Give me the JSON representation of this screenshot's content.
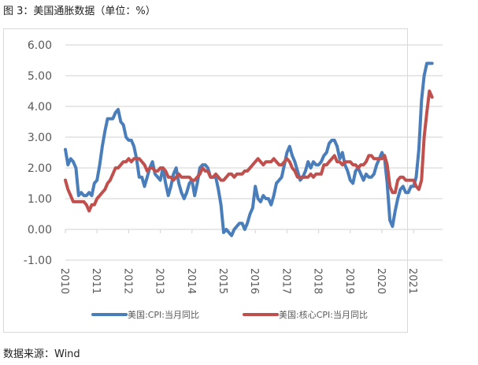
{
  "title": "图 3：美国通胀数据（单位：%）",
  "source": "数据来源：Wind",
  "chart_data": {
    "type": "line",
    "title": "图 3：美国通胀数据（单位：%）",
    "xlabel": "",
    "ylabel": "",
    "ylim": [
      -1.0,
      6.0
    ],
    "yticks": [
      "6.00",
      "5.00",
      "4.00",
      "3.00",
      "2.00",
      "1.00",
      "0.00",
      "-1.00"
    ],
    "xticks": [
      "2010",
      "2011",
      "2012",
      "2013",
      "2014",
      "2015",
      "2016",
      "2017",
      "2018",
      "2019",
      "2020",
      "2021"
    ],
    "grid": true,
    "legend_position": "bottom",
    "x_start": "2010-01",
    "x_frequency": "monthly",
    "series": [
      {
        "name": "美国:CPI:当月同比",
        "color": "#4a7ebb",
        "values": [
          2.6,
          2.1,
          2.3,
          2.2,
          2.0,
          1.1,
          1.2,
          1.1,
          1.1,
          1.2,
          1.1,
          1.5,
          1.6,
          2.1,
          2.7,
          3.2,
          3.6,
          3.6,
          3.6,
          3.8,
          3.9,
          3.5,
          3.4,
          3.0,
          2.9,
          2.9,
          2.7,
          2.3,
          1.7,
          1.7,
          1.4,
          1.7,
          2.0,
          2.2,
          1.8,
          1.7,
          1.6,
          2.0,
          1.5,
          1.1,
          1.4,
          1.8,
          2.0,
          1.5,
          1.2,
          1.0,
          1.2,
          1.5,
          1.6,
          1.1,
          1.5,
          2.0,
          2.1,
          2.1,
          2.0,
          1.7,
          1.7,
          1.7,
          1.3,
          0.8,
          -0.1,
          0.0,
          -0.1,
          -0.2,
          0.0,
          0.1,
          0.2,
          0.2,
          0.0,
          0.2,
          0.5,
          0.7,
          1.4,
          1.0,
          0.9,
          1.1,
          1.0,
          1.0,
          0.8,
          1.1,
          1.5,
          1.6,
          1.7,
          2.1,
          2.5,
          2.7,
          2.4,
          2.2,
          1.9,
          1.6,
          1.7,
          1.9,
          2.2,
          2.0,
          2.2,
          2.1,
          2.1,
          2.2,
          2.4,
          2.5,
          2.8,
          2.9,
          2.9,
          2.7,
          2.3,
          2.5,
          2.1,
          1.9,
          1.6,
          1.5,
          1.9,
          2.0,
          1.8,
          1.6,
          1.8,
          1.7,
          1.7,
          1.8,
          2.1,
          2.3,
          2.5,
          2.3,
          1.5,
          0.3,
          0.1,
          0.6,
          1.0,
          1.3,
          1.4,
          1.2,
          1.2,
          1.4,
          1.4,
          1.7,
          2.6,
          4.2,
          5.0,
          5.4,
          5.4,
          5.4
        ],
        "x_range": "2010-01 to 2021-07"
      },
      {
        "name": "美国:核心CPI:当月同比",
        "color": "#c0504d",
        "values": [
          1.6,
          1.3,
          1.1,
          0.9,
          0.9,
          0.9,
          0.9,
          0.9,
          0.8,
          0.6,
          0.8,
          0.8,
          1.0,
          1.1,
          1.2,
          1.3,
          1.5,
          1.6,
          1.8,
          2.0,
          2.0,
          2.1,
          2.2,
          2.2,
          2.3,
          2.2,
          2.3,
          2.3,
          2.3,
          2.2,
          2.1,
          1.9,
          2.0,
          2.0,
          1.9,
          1.9,
          2.0,
          2.0,
          1.9,
          1.7,
          1.7,
          1.6,
          1.7,
          1.8,
          1.7,
          1.7,
          1.7,
          1.7,
          1.6,
          1.6,
          1.7,
          1.8,
          2.0,
          1.9,
          1.9,
          1.7,
          1.7,
          1.8,
          1.7,
          1.6,
          1.6,
          1.7,
          1.8,
          1.8,
          1.7,
          1.8,
          1.8,
          1.8,
          1.9,
          1.9,
          2.0,
          2.1,
          2.2,
          2.3,
          2.2,
          2.1,
          2.2,
          2.2,
          2.2,
          2.3,
          2.2,
          2.1,
          2.1,
          2.2,
          2.3,
          2.2,
          2.0,
          1.9,
          1.7,
          1.7,
          1.7,
          1.7,
          1.7,
          1.8,
          1.7,
          1.8,
          1.8,
          1.8,
          2.1,
          2.1,
          2.2,
          2.3,
          2.4,
          2.2,
          2.2,
          2.1,
          2.2,
          2.2,
          2.2,
          2.1,
          2.1,
          2.0,
          2.1,
          2.1,
          2.2,
          2.4,
          2.4,
          2.3,
          2.3,
          2.3,
          2.3,
          2.4,
          2.1,
          1.4,
          1.2,
          1.2,
          1.6,
          1.7,
          1.7,
          1.6,
          1.6,
          1.6,
          1.6,
          1.4,
          1.3,
          1.6,
          3.0,
          3.8,
          4.5,
          4.3
        ],
        "x_range": "2010-01 to 2021-07"
      }
    ]
  },
  "legend": {
    "items": [
      {
        "label": "美国:CPI:当月同比",
        "color": "#4a7ebb"
      },
      {
        "label": "美国:核心CPI:当月同比",
        "color": "#c0504d"
      }
    ]
  }
}
